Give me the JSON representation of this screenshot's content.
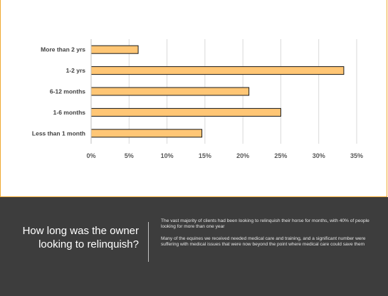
{
  "chart_data": {
    "type": "bar",
    "orientation": "horizontal",
    "categories": [
      "More than 2 yrs",
      "1-2 yrs",
      "6-12 months",
      "1-6 months",
      "Less than 1 month"
    ],
    "values": [
      6.2,
      33.3,
      20.8,
      25.0,
      14.6
    ],
    "x_ticks": [
      "0%",
      "5%",
      "10%",
      "15%",
      "20%",
      "25%",
      "30%",
      "35%"
    ],
    "xlim": [
      0,
      35
    ],
    "grid": true,
    "legend": "none",
    "colors": {
      "bar_fill": "#ffc675",
      "bar_stroke": "#1a1a1a",
      "grid": "#d9d9d9"
    }
  },
  "caption": {
    "question": "How long was the owner looking to relinquish?",
    "note_1": "The vast majority of clients had been looking to relinquish their horse for months, with 40% of people looking for more than one year",
    "note_2": "Many of the equines we received needed medical care and training, and a significant number were suffering with medical issues that were now beyond the point where medical care could save them"
  },
  "colors": {
    "panel_border": "#f0a830",
    "footer_background": "#3d3d3d"
  }
}
